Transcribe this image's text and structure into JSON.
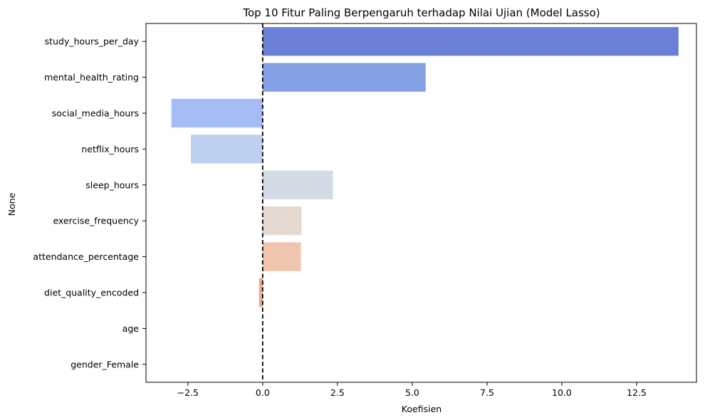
{
  "chart_data": {
    "type": "bar",
    "orientation": "horizontal",
    "title": "Top 10 Fitur Paling Berpengaruh terhadap Nilai Ujian (Model Lasso)",
    "xlabel": "Koefisien",
    "ylabel": "None",
    "categories": [
      "study_hours_per_day",
      "mental_health_rating",
      "social_media_hours",
      "netflix_hours",
      "sleep_hours",
      "exercise_frequency",
      "attendance_percentage",
      "diet_quality_encoded",
      "age",
      "gender_Female"
    ],
    "values": [
      13.9,
      5.45,
      -3.05,
      -2.4,
      2.35,
      1.3,
      1.28,
      -0.12,
      0.0,
      0.0
    ],
    "colors": [
      "#6a7fd6",
      "#86a0e6",
      "#a4bbf4",
      "#bdd0f2",
      "#d4dae6",
      "#e5d9d0",
      "#efc5ae",
      "#eea88a",
      "#e68a6c",
      "#d76e56"
    ],
    "xlim": [
      -3.9,
      14.5
    ],
    "xticks": [
      -2.5,
      0.0,
      2.5,
      5.0,
      7.5,
      10.0,
      12.5
    ],
    "xtick_labels": [
      "−2.5",
      "0.0",
      "2.5",
      "5.0",
      "7.5",
      "10.0",
      "12.5"
    ],
    "reference_line": {
      "x": 0.0,
      "style": "dashed",
      "color": "#000000"
    },
    "grid": false,
    "legend": "none"
  }
}
